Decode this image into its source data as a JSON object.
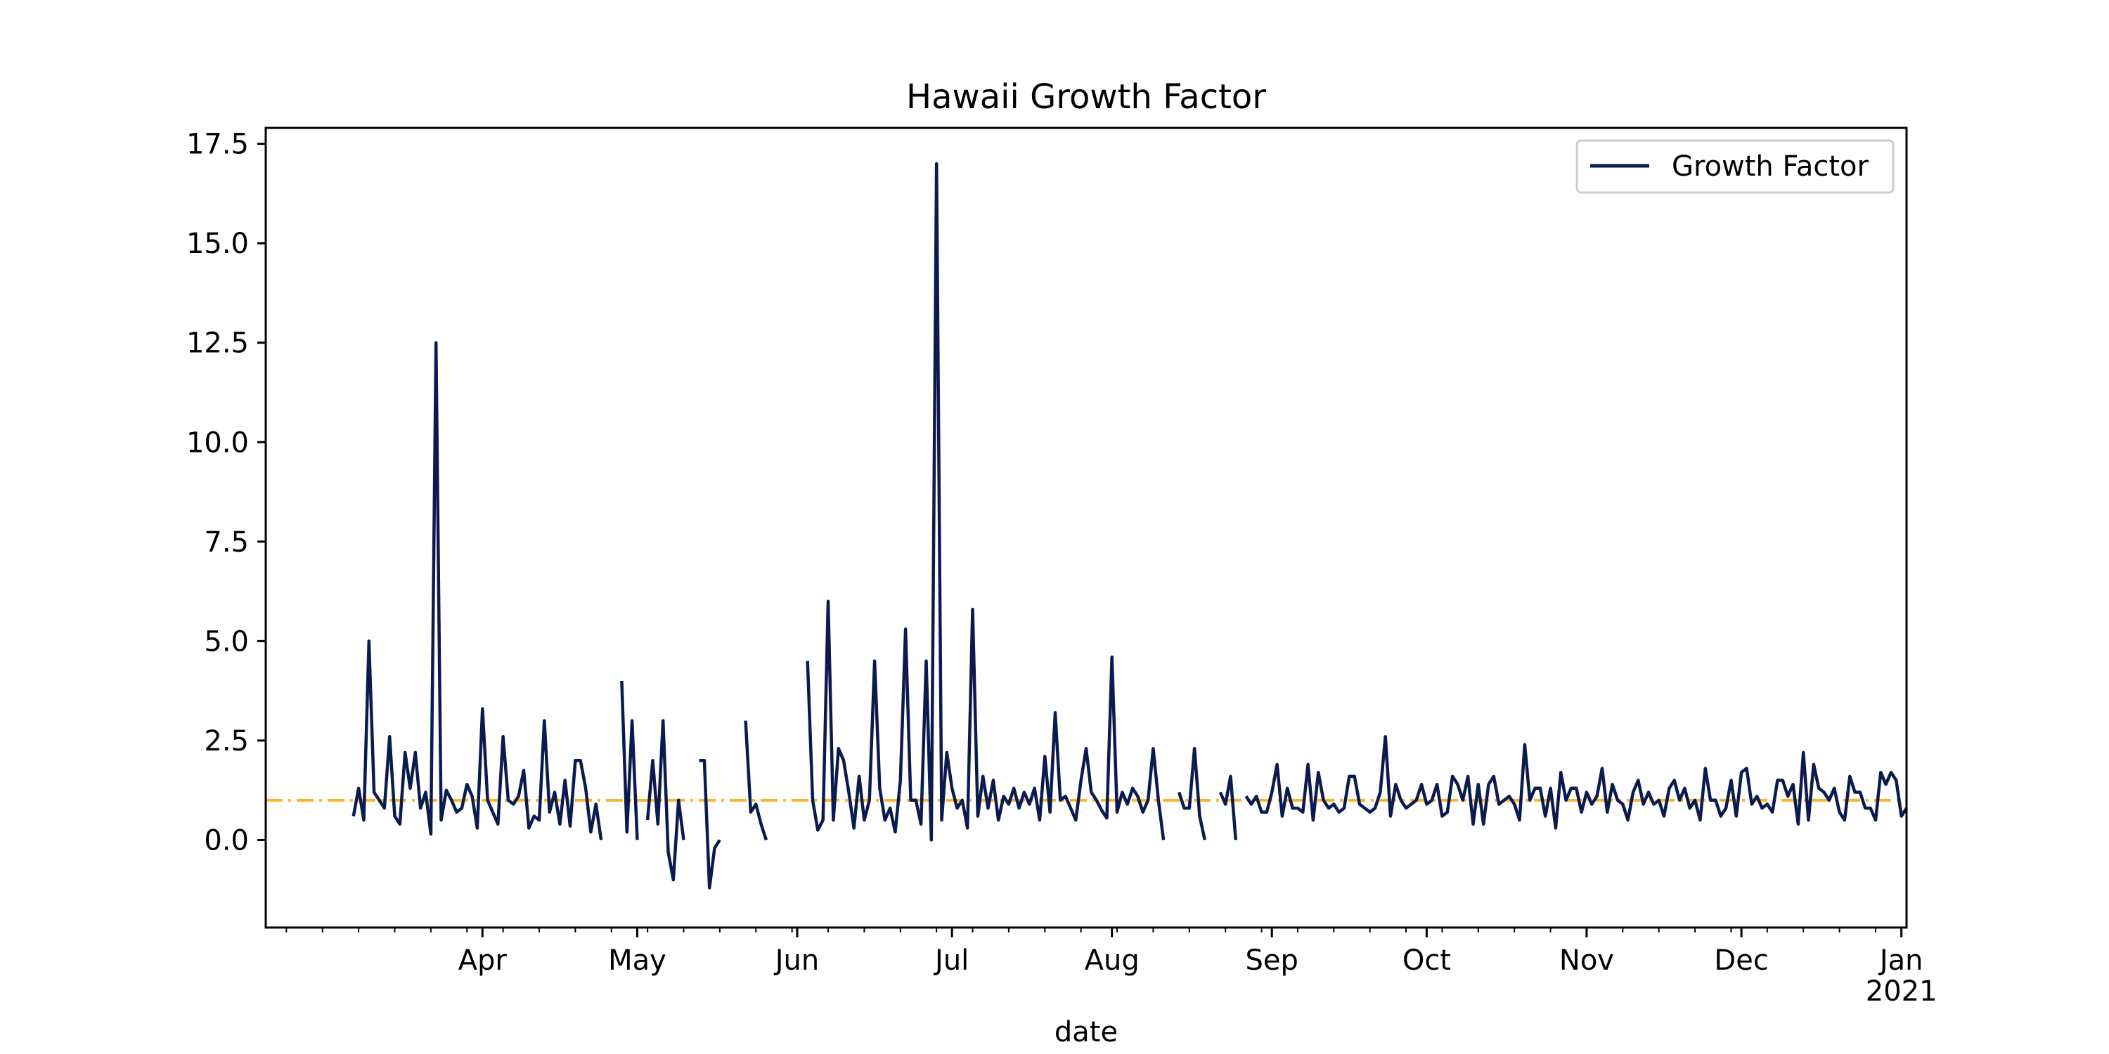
{
  "chart_data": {
    "type": "line",
    "title": "Hawaii Growth Factor",
    "xlabel": "date",
    "ylabel": "",
    "xlim": [
      "2020-02-19",
      "2021-01-02"
    ],
    "ylim": [
      -2.2,
      17.9
    ],
    "month_ticks": [
      {
        "date": "2020-04-01",
        "label": "Apr",
        "sublabel": ""
      },
      {
        "date": "2020-05-01",
        "label": "May",
        "sublabel": ""
      },
      {
        "date": "2020-06-01",
        "label": "Jun",
        "sublabel": ""
      },
      {
        "date": "2020-07-01",
        "label": "Jul",
        "sublabel": ""
      },
      {
        "date": "2020-08-01",
        "label": "Aug",
        "sublabel": ""
      },
      {
        "date": "2020-09-01",
        "label": "Sep",
        "sublabel": ""
      },
      {
        "date": "2020-10-01",
        "label": "Oct",
        "sublabel": ""
      },
      {
        "date": "2020-11-01",
        "label": "Nov",
        "sublabel": ""
      },
      {
        "date": "2020-12-01",
        "label": "Dec",
        "sublabel": ""
      },
      {
        "date": "2021-01-01",
        "label": "Jan",
        "sublabel": "2021"
      }
    ],
    "y_ticks": [
      {
        "value": 0,
        "label": "0.0"
      },
      {
        "value": 2.5,
        "label": "2.5"
      },
      {
        "value": 5,
        "label": "5.0"
      },
      {
        "value": 7.5,
        "label": "7.5"
      },
      {
        "value": 10,
        "label": "10.0"
      },
      {
        "value": 12.5,
        "label": "12.5"
      },
      {
        "value": 15,
        "label": "15.0"
      },
      {
        "value": 17.5,
        "label": "17.5"
      }
    ],
    "grid": false,
    "legend": {
      "position": "top-right"
    },
    "series": [
      {
        "name": "Growth Factor",
        "color": "#0b1b4d",
        "start_date": "2020-03-07",
        "values": [
          0.6,
          1.3,
          0.5,
          5.0,
          1.2,
          1.0,
          0.8,
          2.6,
          0.6,
          0.4,
          2.2,
          1.3,
          2.2,
          0.8,
          1.2,
          0.15,
          12.5,
          0.5,
          1.25,
          1.0,
          0.7,
          0.8,
          1.4,
          1.1,
          0.3,
          3.3,
          1.0,
          0.7,
          0.4,
          2.6,
          1.0,
          0.9,
          1.1,
          1.75,
          0.3,
          0.6,
          0.5,
          3.0,
          0.7,
          1.2,
          0.4,
          1.5,
          0.35,
          2.0,
          2.0,
          1.3,
          0.2,
          0.9,
          0.0,
          null,
          null,
          null,
          4.0,
          0.2,
          3.0,
          0.0,
          null,
          0.5,
          2.0,
          0.4,
          3.0,
          -0.3,
          -1.0,
          1.0,
          0.0,
          null,
          null,
          2.0,
          2.0,
          -1.2,
          -0.2,
          0.0,
          null,
          null,
          null,
          null,
          3.0,
          0.7,
          0.9,
          0.4,
          0.0,
          null,
          null,
          null,
          null,
          null,
          null,
          null,
          4.5,
          1.0,
          0.25,
          0.5,
          6.0,
          0.5,
          2.3,
          2.0,
          1.2,
          0.3,
          1.6,
          0.5,
          1.0,
          4.5,
          1.3,
          0.5,
          0.8,
          0.2,
          1.5,
          5.3,
          1.0,
          1.0,
          0.4,
          4.5,
          0.0,
          17.0,
          0.5,
          2.2,
          1.3,
          0.8,
          1.0,
          0.3,
          5.8,
          0.6,
          1.6,
          0.8,
          1.5,
          0.5,
          1.1,
          0.9,
          1.3,
          0.8,
          1.2,
          0.9,
          1.3,
          0.5,
          2.1,
          0.7,
          3.2,
          1.0,
          1.1,
          0.8,
          0.5,
          1.5,
          2.3,
          1.2,
          1.0,
          0.75,
          0.55,
          4.6,
          0.7,
          1.2,
          0.9,
          1.3,
          1.1,
          0.7,
          1.0,
          2.3,
          1.0,
          0.0,
          null,
          null,
          1.2,
          0.8,
          0.8,
          2.3,
          0.6,
          0.0,
          null,
          null,
          1.2,
          0.9,
          1.6,
          0.0,
          null,
          1.1,
          0.9,
          1.1,
          0.7,
          0.7,
          1.2,
          1.9,
          0.6,
          1.3,
          0.8,
          0.8,
          0.7,
          1.9,
          0.5,
          1.7,
          1.0,
          0.8,
          0.9,
          0.7,
          0.8,
          1.6,
          1.6,
          0.9,
          0.8,
          0.7,
          0.8,
          1.2,
          2.6,
          0.6,
          1.4,
          1.0,
          0.8,
          0.9,
          1.0,
          1.4,
          0.9,
          1.0,
          1.4,
          0.6,
          0.7,
          1.6,
          1.4,
          1.0,
          1.6,
          0.4,
          1.4,
          0.4,
          1.4,
          1.6,
          0.9,
          1.0,
          1.1,
          0.9,
          0.5,
          2.4,
          1.0,
          1.3,
          1.3,
          0.6,
          1.3,
          0.3,
          1.7,
          1.0,
          1.3,
          1.3,
          0.7,
          1.2,
          0.9,
          1.1,
          1.8,
          0.7,
          1.4,
          1.0,
          0.9,
          0.5,
          1.2,
          1.5,
          0.9,
          1.2,
          0.9,
          1.0,
          0.6,
          1.3,
          1.5,
          1.0,
          1.3,
          0.8,
          1.0,
          0.5,
          1.8,
          1.0,
          1.0,
          0.6,
          0.8,
          1.5,
          0.6,
          1.7,
          1.8,
          0.9,
          1.1,
          0.8,
          0.9,
          0.7,
          1.5,
          1.5,
          1.1,
          1.4,
          0.4,
          2.2,
          0.5,
          1.9,
          1.3,
          1.2,
          1.0,
          1.3,
          0.7,
          0.5,
          1.6,
          1.2,
          1.2,
          0.8,
          0.8,
          0.5,
          1.7,
          1.4,
          1.7,
          1.5,
          0.6,
          0.8
        ]
      }
    ],
    "reference_line": {
      "value": 1.0,
      "color": "#fbb42d",
      "style": "dash-dot"
    }
  }
}
